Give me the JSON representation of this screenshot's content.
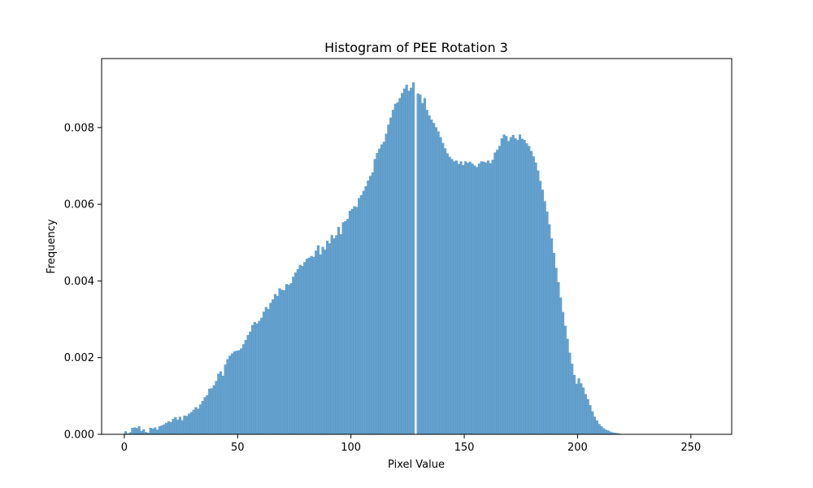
{
  "chart_data": {
    "type": "bar",
    "title": "Histogram of PEE Rotation 3",
    "xlabel": "Pixel Value",
    "ylabel": "Frequency",
    "xlim": [
      -10,
      268
    ],
    "ylim": [
      0,
      0.0098
    ],
    "x_ticks": [
      0,
      50,
      100,
      150,
      200,
      250
    ],
    "x_tick_labels": [
      "0",
      "50",
      "100",
      "150",
      "200",
      "250"
    ],
    "y_ticks": [
      0.0,
      0.002,
      0.004,
      0.006,
      0.008
    ],
    "y_tick_labels": [
      "0.000",
      "0.002",
      "0.004",
      "0.006",
      "0.008"
    ],
    "bar_color": "#4a90c4",
    "bar_opacity": 0.85,
    "grid": false,
    "bin_start": 0,
    "bin_width": 1,
    "values": [
      8e-05,
      2e-05,
      5e-05,
      0.00017,
      0.00018,
      0.00016,
      0.00021,
      9e-05,
      0.00013,
      6e-05,
      4e-05,
      0.00017,
      0.00015,
      0.00018,
      0.00012,
      0.00021,
      0.00023,
      0.00026,
      0.0003,
      0.00034,
      0.00032,
      0.0004,
      0.00045,
      0.00038,
      0.00046,
      0.00037,
      0.00049,
      0.00048,
      0.00054,
      0.00058,
      0.00064,
      0.00071,
      0.00067,
      0.00078,
      0.00087,
      0.00097,
      0.00102,
      0.00119,
      0.0012,
      0.00128,
      0.00139,
      0.00158,
      0.00164,
      0.00153,
      0.00182,
      0.00196,
      0.00205,
      0.00211,
      0.00216,
      0.00218,
      0.00219,
      0.00224,
      0.00235,
      0.00246,
      0.00259,
      0.00268,
      0.00285,
      0.00293,
      0.00289,
      0.00296,
      0.00304,
      0.0032,
      0.00332,
      0.00327,
      0.00343,
      0.00352,
      0.00366,
      0.00361,
      0.00381,
      0.00377,
      0.00376,
      0.00392,
      0.0039,
      0.00394,
      0.00411,
      0.00422,
      0.00431,
      0.00442,
      0.00439,
      0.00449,
      0.00458,
      0.00461,
      0.00465,
      0.00463,
      0.00479,
      0.00493,
      0.00469,
      0.00489,
      0.00482,
      0.00505,
      0.00498,
      0.0052,
      0.00511,
      0.00519,
      0.00541,
      0.00522,
      0.00553,
      0.00556,
      0.00562,
      0.00583,
      0.00588,
      0.00595,
      0.00593,
      0.00616,
      0.00624,
      0.00635,
      0.00647,
      0.00662,
      0.00674,
      0.00683,
      0.00718,
      0.00734,
      0.00745,
      0.00756,
      0.00763,
      0.00784,
      0.00808,
      0.00826,
      0.00846,
      0.00862,
      0.00866,
      0.00877,
      0.0089,
      0.00902,
      0.00912,
      0.00896,
      0.00904,
      0.00918,
      0.0,
      0.00889,
      0.00886,
      0.00864,
      0.00877,
      0.00846,
      0.00832,
      0.00821,
      0.00812,
      0.00801,
      0.0079,
      0.00775,
      0.0076,
      0.00746,
      0.00733,
      0.00724,
      0.00718,
      0.00712,
      0.00714,
      0.00705,
      0.00712,
      0.00702,
      0.00712,
      0.00708,
      0.00711,
      0.00706,
      0.00701,
      0.00697,
      0.00706,
      0.00712,
      0.00711,
      0.00709,
      0.00714,
      0.00707,
      0.00716,
      0.00735,
      0.00742,
      0.00752,
      0.00772,
      0.00782,
      0.00778,
      0.00765,
      0.00775,
      0.00781,
      0.00772,
      0.00768,
      0.00782,
      0.00771,
      0.00768,
      0.00759,
      0.00752,
      0.00739,
      0.00725,
      0.00709,
      0.00688,
      0.00661,
      0.00638,
      0.00608,
      0.00581,
      0.00548,
      0.00511,
      0.00473,
      0.00434,
      0.00397,
      0.00357,
      0.00319,
      0.00283,
      0.00249,
      0.00213,
      0.00184,
      0.00155,
      0.00132,
      0.00146,
      0.00133,
      0.00122,
      0.00105,
      0.00092,
      0.00076,
      0.0006,
      0.00046,
      0.00036,
      0.00027,
      0.00021,
      0.00016,
      0.00012,
      0.0001,
      7e-05,
      5e-05,
      4e-05,
      3e-05,
      2e-05,
      1e-05
    ]
  }
}
